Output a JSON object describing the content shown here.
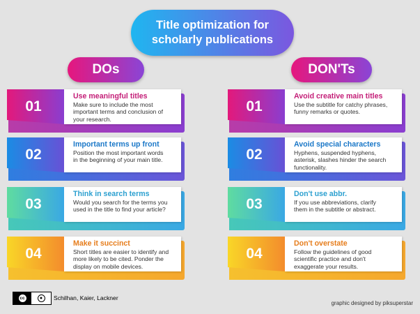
{
  "title": {
    "line1": "Title optimization for",
    "line2": "scholarly publications"
  },
  "headers": {
    "dos": "DOs",
    "donts": "DON'Ts"
  },
  "dos": [
    {
      "num": "01",
      "title": "Use meaningful titles",
      "lines": [
        "Make sure to include the most",
        "important terms and conclusion of",
        "your research."
      ],
      "color": "pink"
    },
    {
      "num": "02",
      "title": "Important terms up front",
      "lines": [
        "Position the most important words",
        "in the beginning of your main title."
      ],
      "color": "blue"
    },
    {
      "num": "03",
      "title": "Think in search terms",
      "lines": [
        "Would you search for the terms you",
        "used in the title to find your article?"
      ],
      "color": "teal"
    },
    {
      "num": "04",
      "title": "Make it succinct",
      "lines": [
        "Short titles are easier to identify and",
        "more likely to be cited. Ponder the",
        "display on mobile devices."
      ],
      "color": "orange"
    }
  ],
  "donts": [
    {
      "num": "01",
      "title": "Avoid creative main titles",
      "lines": [
        "Use the subtitle for catchy phrases,",
        "funny remarks or quotes."
      ],
      "color": "pink"
    },
    {
      "num": "02",
      "title": "Avoid special characters",
      "lines": [
        "Hyphens, suspended hyphens,",
        "asterisk, slashes hinder the search",
        "functionality."
      ],
      "color": "blue"
    },
    {
      "num": "03",
      "title": "Don't use abbr.",
      "lines": [
        "If you use abbreviations, clarify",
        "them in the subtitle or abstract."
      ],
      "color": "teal"
    },
    {
      "num": "04",
      "title": "Don't overstate",
      "lines": [
        "Follow the guidelines of good",
        "scientific practice and don't",
        "exaggerate your results."
      ],
      "color": "orange"
    }
  ],
  "footer": {
    "cc_label": "cc",
    "by_label": "BY",
    "authors": "Schilhan, Kaier, Lackner",
    "credit": "graphic designed by piksuperstar"
  }
}
